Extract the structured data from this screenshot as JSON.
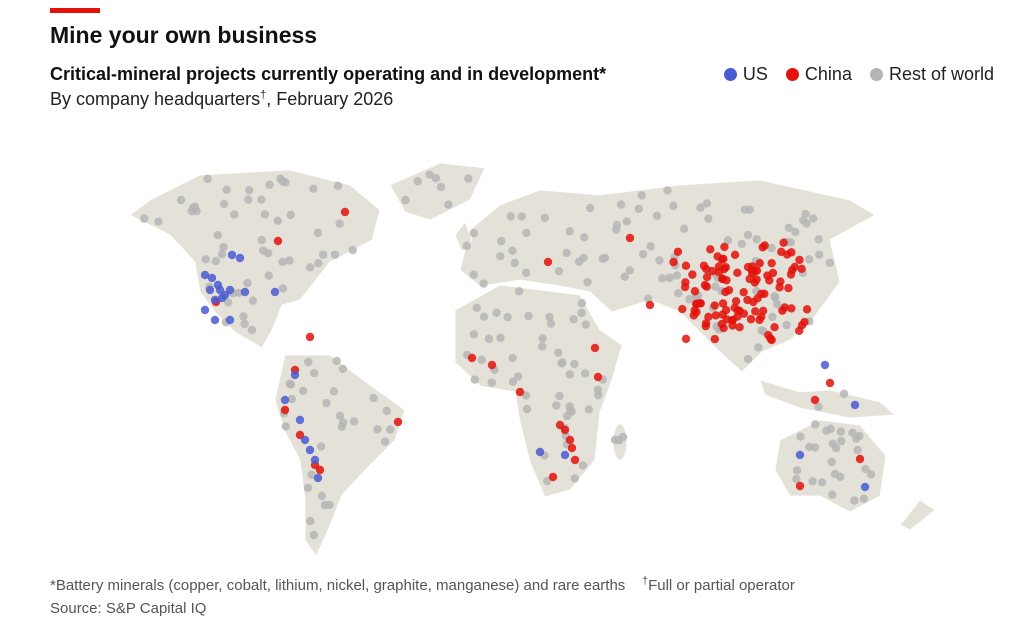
{
  "header": {
    "title": "Mine your own business",
    "subtitle": "Critical-mineral projects currently operating and in development*",
    "byline": [
      "By company headquarters",
      "†",
      ", February 2026"
    ]
  },
  "legend": [
    {
      "label": "US",
      "color": "#4a5bd1"
    },
    {
      "label": "China",
      "color": "#e3120b"
    },
    {
      "label": "Rest of world",
      "color": "#b5b5b5"
    }
  ],
  "footnotes": {
    "note": "*Battery minerals (copper, cobalt, lithium, nickel, graphite, manganese) and rare earths",
    "dagger": "†",
    "dagger_note": "Full or partial operator",
    "source": "Source: S&P Capital IQ"
  }
}
